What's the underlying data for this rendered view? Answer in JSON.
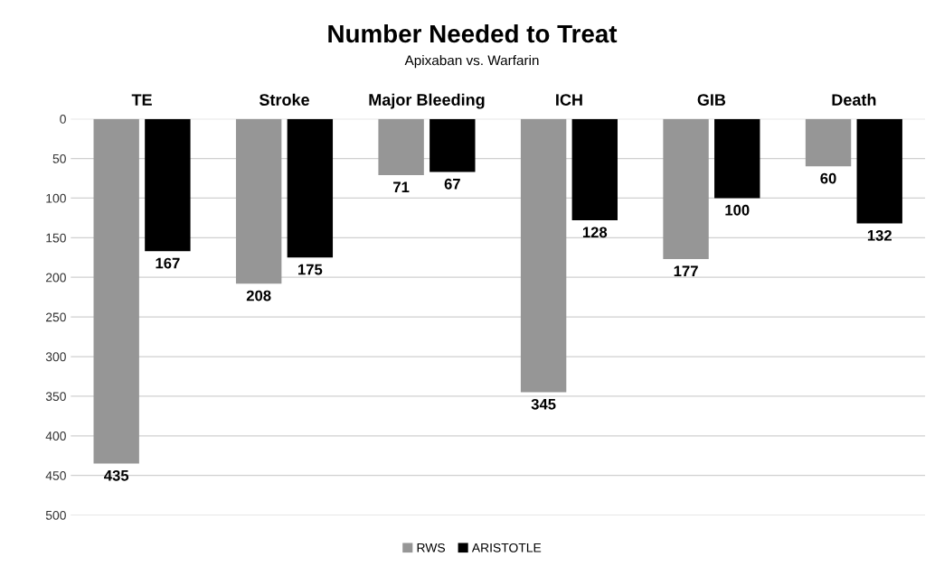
{
  "chart_data": {
    "type": "bar",
    "title": "Number Needed to Treat",
    "subtitle": "Apixaban vs. Warfarin",
    "categories": [
      "TE",
      "Stroke",
      "Major Bleeding",
      "ICH",
      "GIB",
      "Death"
    ],
    "series": [
      {
        "name": "RWS",
        "color": "#969696",
        "values": [
          435,
          208,
          71,
          345,
          177,
          60
        ]
      },
      {
        "name": "ARISTOTLE",
        "color": "#000000",
        "values": [
          167,
          175,
          67,
          128,
          100,
          132
        ]
      }
    ],
    "ylim": [
      500,
      0
    ],
    "yticks": [
      0,
      50,
      100,
      150,
      200,
      250,
      300,
      350,
      400,
      450,
      500
    ],
    "grid": "y",
    "legend": "bottom",
    "data_labels": true
  }
}
